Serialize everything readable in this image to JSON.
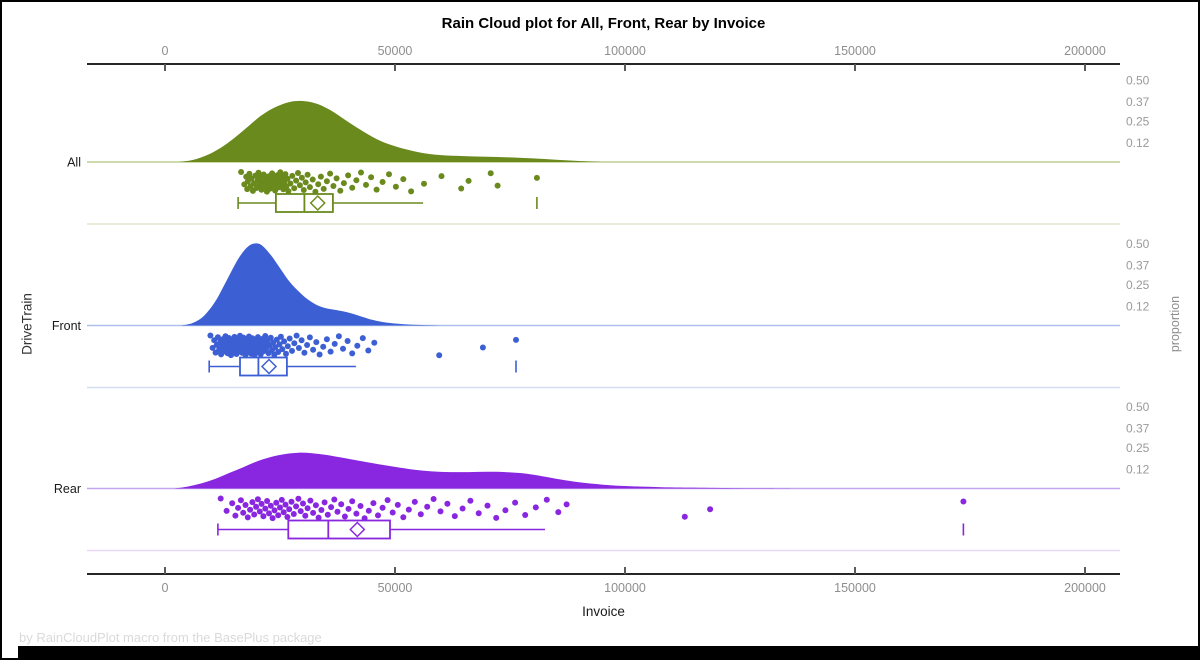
{
  "page": {
    "footer_note": "by RainCloudPlot macro from the BasePlus package"
  },
  "chart_data": {
    "type": "raincloud (half-violin density + jittered strip + box plot per category)",
    "title": "Rain Cloud plot for All, Front, Rear by Invoice",
    "x_axis": {
      "label": "Invoice",
      "ticks": [
        0,
        50000,
        100000,
        150000,
        200000
      ],
      "range": [
        -17000,
        208000
      ],
      "mirrored_top_axis": true,
      "grid": false
    },
    "category_axis": {
      "label": "DriveTrain",
      "categories": [
        "All",
        "Front",
        "Rear"
      ]
    },
    "proportion_axis": {
      "label": "proportion",
      "ticks": [
        0.5,
        0.37,
        0.25,
        0.12
      ]
    },
    "legend": "none",
    "groups": [
      {
        "name": "All",
        "color": "#6a8a1e",
        "line_tint": "#bcce93",
        "separator_tint": "#dfe7cb",
        "box": {
          "whisker_low": 15900,
          "q1": 24100,
          "median": 30300,
          "mean": 33200,
          "q3": 36500,
          "whisker_high": 56100,
          "outliers": [
            80850
          ]
        },
        "density": [
          [
            3000,
            0
          ],
          [
            6000,
            0.012
          ],
          [
            9000,
            0.04
          ],
          [
            12000,
            0.085
          ],
          [
            15000,
            0.145
          ],
          [
            18000,
            0.215
          ],
          [
            21000,
            0.285
          ],
          [
            24000,
            0.335
          ],
          [
            27000,
            0.365
          ],
          [
            30000,
            0.372
          ],
          [
            33000,
            0.355
          ],
          [
            36000,
            0.315
          ],
          [
            39000,
            0.26
          ],
          [
            42000,
            0.205
          ],
          [
            45000,
            0.155
          ],
          [
            48000,
            0.115
          ],
          [
            52000,
            0.08
          ],
          [
            56000,
            0.055
          ],
          [
            60000,
            0.042
          ],
          [
            65000,
            0.036
          ],
          [
            70000,
            0.032
          ],
          [
            75000,
            0.028
          ],
          [
            80000,
            0.022
          ],
          [
            85000,
            0.014
          ],
          [
            90000,
            0.006
          ],
          [
            95000,
            0
          ]
        ],
        "points": [
          16536,
          17243,
          17655,
          17878,
          18022,
          18345,
          18577,
          18799,
          19110,
          19345,
          19656,
          19877,
          20145,
          20333,
          20544,
          20766,
          20987,
          21233,
          21455,
          21677,
          21899,
          22144,
          22366,
          22588,
          22811,
          23055,
          23277,
          23499,
          23722,
          23944,
          24166,
          24389,
          24611,
          24833,
          25056,
          25278,
          25500,
          25722,
          25945,
          26167,
          26389,
          26612,
          26834,
          27250,
          27667,
          28083,
          28500,
          28916,
          29333,
          29750,
          30166,
          30583,
          31000,
          31500,
          32100,
          32700,
          33300,
          33900,
          34500,
          35200,
          35900,
          36600,
          37300,
          38100,
          38900,
          39800,
          40700,
          41600,
          42600,
          43700,
          44800,
          46000,
          47300,
          48700,
          50200,
          51800,
          53500,
          56300,
          60100,
          64400,
          66000,
          70800,
          72300,
          80850
        ]
      },
      {
        "name": "Front",
        "color": "#3d5fd4",
        "line_tint": "#adc0ee",
        "separator_tint": "#d6def6",
        "box": {
          "whisker_low": 9600,
          "q1": 16300,
          "median": 20300,
          "mean": 22600,
          "q3": 26500,
          "whisker_high": 41500,
          "outliers": [
            76300
          ]
        },
        "density": [
          [
            3500,
            0
          ],
          [
            6000,
            0.015
          ],
          [
            8500,
            0.06
          ],
          [
            11000,
            0.15
          ],
          [
            13500,
            0.28
          ],
          [
            16000,
            0.41
          ],
          [
            18000,
            0.48
          ],
          [
            19500,
            0.5
          ],
          [
            21000,
            0.49
          ],
          [
            23000,
            0.43
          ],
          [
            25000,
            0.35
          ],
          [
            27000,
            0.27
          ],
          [
            29000,
            0.21
          ],
          [
            31000,
            0.16
          ],
          [
            33000,
            0.125
          ],
          [
            35000,
            0.105
          ],
          [
            37000,
            0.095
          ],
          [
            39000,
            0.085
          ],
          [
            41000,
            0.07
          ],
          [
            43000,
            0.052
          ],
          [
            45000,
            0.035
          ],
          [
            48000,
            0.018
          ],
          [
            52000,
            0.008
          ],
          [
            56000,
            0.003
          ],
          [
            60000,
            0
          ]
        ],
        "points": [
          9875,
          10350,
          10700,
          11000,
          11250,
          11500,
          11750,
          12000,
          12200,
          12400,
          12600,
          12800,
          13000,
          13150,
          13300,
          13450,
          13600,
          13750,
          13900,
          14050,
          14200,
          14350,
          14500,
          14650,
          14800,
          14950,
          15100,
          15250,
          15400,
          15550,
          15700,
          15850,
          16000,
          16150,
          16300,
          16450,
          16600,
          16750,
          16900,
          17050,
          17200,
          17350,
          17500,
          17650,
          17800,
          17950,
          18100,
          18250,
          18400,
          18550,
          18700,
          18850,
          19000,
          19150,
          19300,
          19450,
          19600,
          19750,
          19900,
          20050,
          20200,
          20400,
          20600,
          20800,
          21000,
          21200,
          21400,
          21600,
          21800,
          22000,
          22250,
          22500,
          22750,
          23000,
          23250,
          23500,
          23750,
          24000,
          24300,
          24600,
          24900,
          25200,
          25500,
          25900,
          26300,
          26700,
          27100,
          27600,
          28100,
          28600,
          29100,
          29700,
          30300,
          30900,
          31500,
          32200,
          32900,
          33600,
          34400,
          35200,
          36000,
          36900,
          37800,
          38700,
          39700,
          40700,
          41800,
          43000,
          44200,
          45500,
          59600,
          69100,
          76300
        ]
      },
      {
        "name": "Rear",
        "color": "#8926e0",
        "line_tint": "#c4a6ef",
        "separator_tint": "#e7d8f9",
        "box": {
          "whisker_low": 11500,
          "q1": 26800,
          "median": 35500,
          "mean": 41800,
          "q3": 48900,
          "whisker_high": 82600,
          "outliers": [
            173560
          ]
        },
        "density": [
          [
            2000,
            0
          ],
          [
            5000,
            0.012
          ],
          [
            8000,
            0.032
          ],
          [
            11000,
            0.06
          ],
          [
            14000,
            0.095
          ],
          [
            17000,
            0.13
          ],
          [
            20000,
            0.165
          ],
          [
            23000,
            0.192
          ],
          [
            26000,
            0.21
          ],
          [
            29000,
            0.218
          ],
          [
            32000,
            0.215
          ],
          [
            35000,
            0.205
          ],
          [
            38000,
            0.19
          ],
          [
            42000,
            0.17
          ],
          [
            46000,
            0.15
          ],
          [
            50000,
            0.132
          ],
          [
            54000,
            0.115
          ],
          [
            58000,
            0.104
          ],
          [
            62000,
            0.1
          ],
          [
            66000,
            0.1
          ],
          [
            70000,
            0.102
          ],
          [
            74000,
            0.1
          ],
          [
            78000,
            0.092
          ],
          [
            82000,
            0.075
          ],
          [
            86000,
            0.055
          ],
          [
            90000,
            0.038
          ],
          [
            95000,
            0.024
          ],
          [
            100000,
            0.015
          ],
          [
            108000,
            0.008
          ],
          [
            116000,
            0.005
          ],
          [
            126000,
            0.002
          ],
          [
            136000,
            0
          ]
        ],
        "points": [
          12100,
          13400,
          14600,
          15300,
          15900,
          16500,
          17000,
          17500,
          18000,
          18500,
          19000,
          19400,
          19800,
          20200,
          20600,
          21000,
          21400,
          21800,
          22200,
          22600,
          23000,
          23400,
          23800,
          24200,
          24600,
          25000,
          25400,
          25800,
          26200,
          26600,
          27000,
          27500,
          28000,
          28500,
          29000,
          29500,
          30000,
          30500,
          31000,
          31600,
          32200,
          32800,
          33400,
          34000,
          34700,
          35400,
          36100,
          36800,
          37500,
          38300,
          39100,
          39900,
          40700,
          41600,
          42500,
          43400,
          44300,
          45300,
          46300,
          47300,
          48400,
          49500,
          50600,
          51800,
          53000,
          54300,
          55600,
          57000,
          58400,
          59900,
          61400,
          63000,
          64700,
          66400,
          68200,
          70100,
          72000,
          74000,
          76100,
          78300,
          80600,
          83000,
          85500,
          87300,
          113000,
          118500,
          173560
        ]
      }
    ]
  }
}
